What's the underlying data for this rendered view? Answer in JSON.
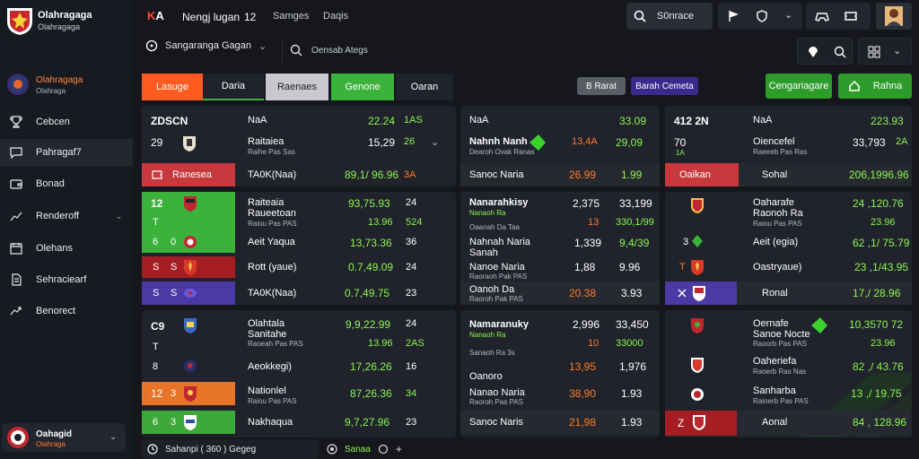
{
  "sidebar": {
    "brand_title": "Olahragaga",
    "brand_sub": "Olahragaga",
    "profile_name": "Olahragaga",
    "profile_sub": "Olahraga",
    "items": [
      {
        "label": "Cebcen",
        "icon": "trophy-icon"
      },
      {
        "label": "Pahragaf7",
        "icon": "chat-icon"
      },
      {
        "label": "Bonad",
        "icon": "wallet-icon"
      },
      {
        "label": "Renderoff",
        "icon": "chart-icon"
      },
      {
        "label": "Olehans",
        "icon": "calendar-icon"
      },
      {
        "label": "Sehraciearf",
        "icon": "document-icon"
      },
      {
        "label": "Benorect",
        "icon": "chart-up-icon"
      }
    ],
    "user_name": "Oahagid",
    "user_sub": "Olahraga"
  },
  "topbar": {
    "logo_a": "K",
    "logo_b": "A",
    "nav": [
      "Nengj lugan",
      "12",
      "Samges",
      "Daqis"
    ],
    "search_label": "S0nrace"
  },
  "filter": {
    "select_label": "Sangaranga Gagan",
    "search_placeholder": "Oensab Ategs"
  },
  "tabs": [
    "Lasuge",
    "Daria",
    "Raenaes",
    "Genone",
    "Oaran"
  ],
  "chips": [
    "B Rarat",
    "Barah Cemeta"
  ],
  "action_buttons": [
    "Cengariagare",
    "Rahna"
  ],
  "colors": {
    "accent_orange": "#ff5a1f",
    "accent_green": "#3bb33b",
    "red": "#c8393e",
    "purple": "#4a3aa5"
  },
  "left_panel": {
    "r1": {
      "c1": "ZDSCN",
      "c2": "NaA",
      "v1": "22.24",
      "v2": "1AS"
    },
    "r2": {
      "c1": "29",
      "team": "Raitaiea",
      "sub": "Raihe Pas Sas",
      "v1": "15,29",
      "v2": "26"
    },
    "r3": {
      "c1": "Ranesea",
      "team": "TA0K(Naa)",
      "v1": "89,1/ 96.96",
      "v2": "3A"
    },
    "r4": {
      "c1": "12",
      "c2": "T",
      "team": "Raiteaia",
      "sub": "Raueetoan",
      "sub2": "Raiou Pas PAS",
      "v1": "93,75.93",
      "v1b": "13.96",
      "v2": "24",
      "v2b": "524"
    },
    "r5": {
      "c1": "6",
      "c2": "0",
      "team": "Aeit Yaqua",
      "v1": "13,73.36",
      "v2": "36"
    },
    "r6": {
      "c1": "S",
      "c2": "S",
      "team": "Rott (yaue)",
      "v1": "0.7,49.09",
      "v2": "24"
    },
    "r7": {
      "c1": "S",
      "c2": "S",
      "team": "TA0K(Naa)",
      "v1": "0.7,49.75",
      "v2": "23"
    },
    "r8": {
      "c1": "C9",
      "team": "Olahtala",
      "sub": "Sanitahe",
      "sub2": "Raoeah Pas PAS",
      "v1": "9,9,22.99",
      "v1b": "13.96",
      "v2": "24",
      "v2b": "2AS"
    },
    "r9": {
      "c1": "T",
      "c2": "8",
      "team": "Aeokkegi)",
      "v1": "17,26.26",
      "v2": "16"
    },
    "r10": {
      "c1": "12",
      "c2": "3",
      "team": "Nationlel",
      "sub": "Raiou Pas PAS",
      "v1": "87,26.36",
      "v2": "34"
    },
    "r11": {
      "c1": "6",
      "c2": "3",
      "team": "Nakhaqua",
      "v1": "9,7,27.96",
      "v2": "23"
    }
  },
  "mid_panel": {
    "r1": {
      "c1": "NaA",
      "v1": "33.09"
    },
    "r2": {
      "team": "Nahnh Nanh",
      "sub": "Dearoh Ovak Ranas",
      "v1": "13,4A",
      "v2": "29,09"
    },
    "r3": {
      "team": "Sanoc Naria",
      "v1": "26.99",
      "v2": "1.99"
    },
    "r4": {
      "team": "Nanarahkisy",
      "sub": "Nanaoh Ra",
      "v1": "2,375",
      "v2": "33,199"
    },
    "r5": {
      "sub": "Oaanah Da Taa",
      "v1": "13",
      "v2": "330,1/99"
    },
    "r6": {
      "team": "Nahnah Naria",
      "sub": "Sanah",
      "v1": "1,339",
      "v2": "9,4/39"
    },
    "r7": {
      "team": "Nanoe Naria",
      "sub": "Raoraoh Pak PAS",
      "v1": "1,88",
      "v2": "9.96"
    },
    "r8": {
      "team": "Oanoh Da",
      "sub": "Raoroh Pak PAS",
      "v1": "20.38",
      "v2": "3.93"
    },
    "r9": {
      "team": "Namaranuky",
      "sub": "Nanaoh Ra",
      "v1": "2,996",
      "v2": "33,450"
    },
    "r10": {
      "sub": "Sanaoh Ra 3s",
      "v1": "10",
      "v2": "33000"
    },
    "r11": {
      "team": "Oanoro",
      "v1": "13,95",
      "v2": "1,976"
    },
    "r12": {
      "team": "Nanao Naria",
      "sub": "Raoroh Pas PAS",
      "v1": "38,90",
      "v2": "1.93"
    },
    "r13": {
      "team": "Sanoc Naris",
      "v1": "21,98",
      "v2": "1.93"
    }
  },
  "right_panel": {
    "r1": {
      "c1": "412 2N",
      "c2": "NaA",
      "v1": "223.93"
    },
    "r2": {
      "c1": "70",
      "c2": "1A",
      "team": "Oiencefel",
      "sub": "Raeeeb Pas Ras",
      "v1": "33,793",
      "v2": "2A"
    },
    "r3": {
      "c1": "Oaikan",
      "team": "Sohal",
      "v1": "206,1996.96"
    },
    "r4": {
      "team": "Oaharafe",
      "sub": "Raonoh Ra",
      "sub2": "Raiou Pas PAS",
      "v1": "24 ,120.76",
      "v1b": "23.96"
    },
    "r5": {
      "c1": "3",
      "team": "Aeit (egia)",
      "v1": "62 ,1/ 75.79"
    },
    "r6": {
      "c1": "T",
      "team": "Oastryaue)",
      "v1": "23 ,1/43.95"
    },
    "r7": {
      "team": "Ronal",
      "v1": "17,/ 28.96"
    },
    "r8": {
      "team": "Oernafe",
      "sub": "Sanoe Nocte",
      "sub2": "Raoorb Pas PAS",
      "v1": "10,3570 72",
      "v1b": "23.96"
    },
    "r9": {
      "team": "Oaheriefa",
      "sub": "Raoerb Ras Nas",
      "v1": "82 ,/ 43.76"
    },
    "r10": {
      "team": "Sanharba",
      "sub": "Raioerb Pas PAS",
      "v1": "13 ,/ 19.75"
    },
    "r11": {
      "c1": "Z",
      "team": "Aonal",
      "v1": "84 , 128.96"
    }
  },
  "bottom": {
    "label": "Sahanpi ( 360 ) Gegeg",
    "status": "Sanaa"
  }
}
